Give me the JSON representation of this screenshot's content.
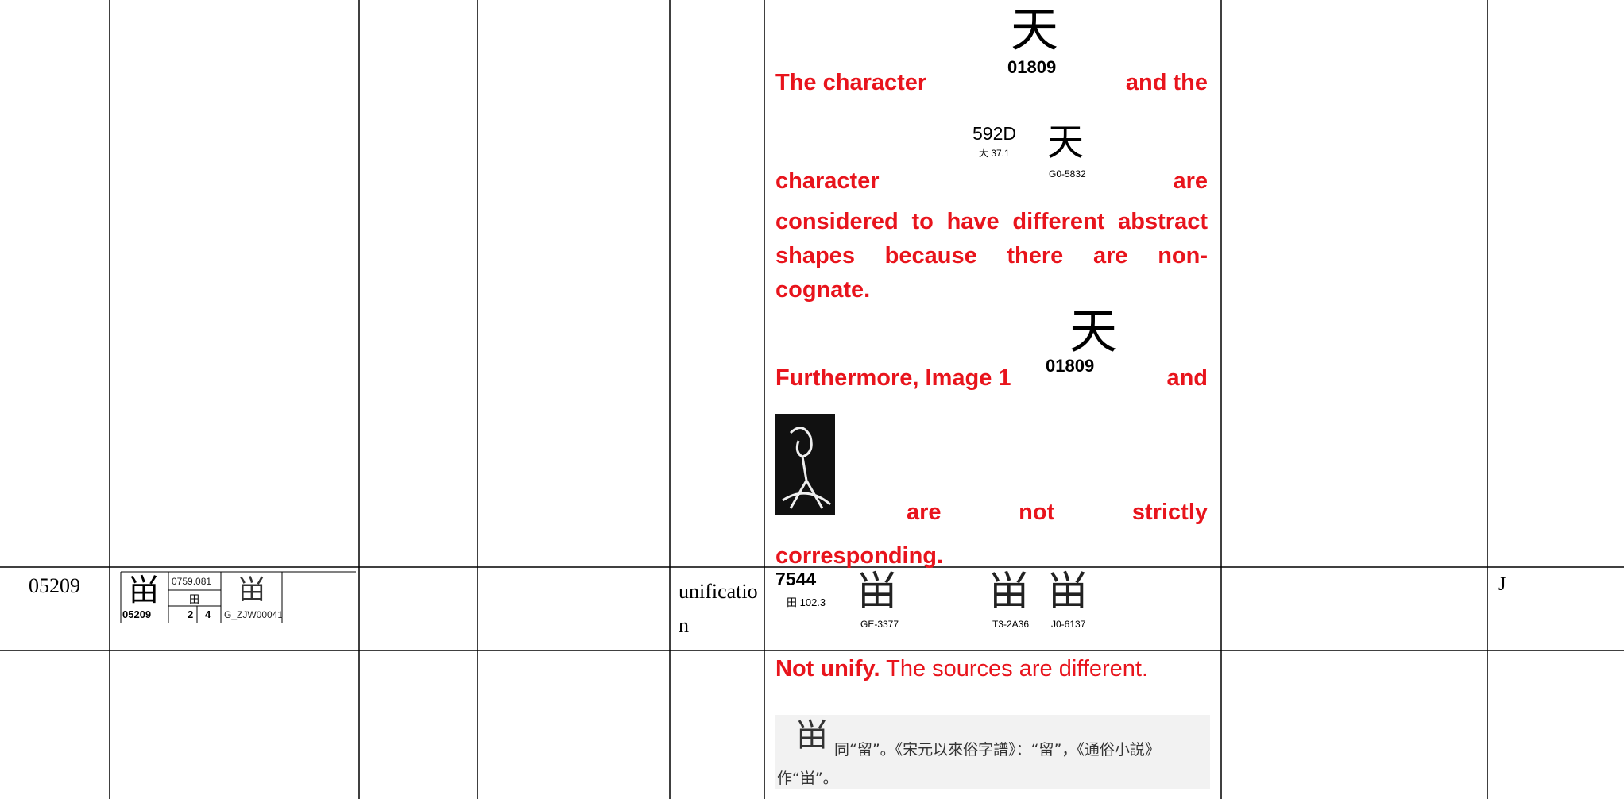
{
  "row1": {
    "note": {
      "p1_a": "The character",
      "glyph1": {
        "char": "天",
        "code": "01809"
      },
      "p1_b": "and the",
      "p2_a": "character",
      "glyph2": {
        "code": "592D",
        "radical": "大 37.1",
        "char": "天",
        "source": "G0-5832"
      },
      "p2_b": "are",
      "p3": "considered to have different abstract shapes because there are non-cognate.",
      "p4_a": "Furthermore, Image 1",
      "glyph3": {
        "char": "天",
        "code": "01809"
      },
      "p4_b": "and",
      "p5": "are not strictly corresponding."
    }
  },
  "row2": {
    "id": "05209",
    "glyph_cell": {
      "char": "畄",
      "code": "05209",
      "index": "0759.081",
      "radical": "田",
      "strokes_a": "2",
      "strokes_b": "4",
      "char2": "畄",
      "source": "G_ZJW00041"
    },
    "status": "unification",
    "evidence": {
      "code": "7544",
      "radical": "田 102.3",
      "glyphs": [
        {
          "char": "畄",
          "source": "GE-3377"
        },
        {
          "char": "畄",
          "source": "T3-2A36"
        },
        {
          "char": "畄",
          "source": "J0-6137"
        }
      ]
    },
    "last": "J"
  },
  "row3": {
    "note_bold": "Not unify.",
    "note_text": "The sources are different.",
    "excerpt_char": "畄",
    "excerpt_text": "同“留”。《宋元以來俗字譜》：“留”，《通俗小説》作“畄”。"
  }
}
